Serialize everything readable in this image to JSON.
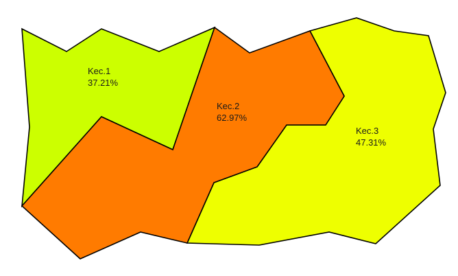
{
  "regions": [
    {
      "id": "kec1",
      "name": "Kec.1",
      "value": "37.21%",
      "color": "#ccff00"
    },
    {
      "id": "kec2",
      "name": "Kec.2",
      "value": "62.97%",
      "color": "#ff7b00"
    },
    {
      "id": "kec3",
      "name": "Kec.3",
      "value": "47.31%",
      "color": "#eeff00"
    }
  ],
  "border_color": "#000000",
  "background_color": "#ffffff"
}
